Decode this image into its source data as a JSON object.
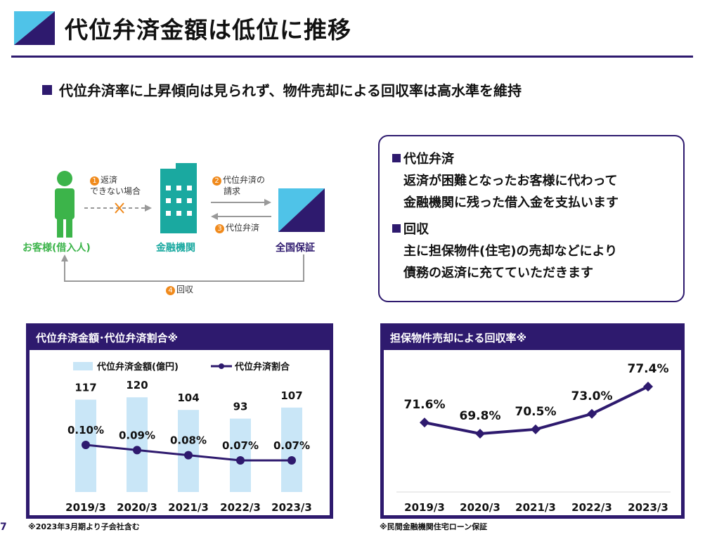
{
  "header": {
    "title": "代位弁済金額は低位に推移",
    "accent": "#2e1a6e",
    "logo_light": "#4fc3e8"
  },
  "subtitle": "代位弁済率に上昇傾向は見られず、物件売却による回収率は高水準を維持",
  "flow": {
    "customer": "お客様(借入人)",
    "bank": "金融機関",
    "guarantor": "全国保証",
    "step1_num": "1",
    "step1_line1": "返済",
    "step1_line2": "できない場合",
    "step2_num": "2",
    "step2_line1": "代位弁済の",
    "step2_line2": "請求",
    "step3_num": "3",
    "step3": "代位弁済",
    "step4_num": "4",
    "step4": "回収",
    "colors": {
      "customer": "#3cb44a",
      "bank": "#1aa9a0",
      "cross": "#f08a1c"
    }
  },
  "definitions": {
    "item1_title": "代位弁済",
    "item1_line1": "返済が困難となったお客様に代わって",
    "item1_line2": "金融機関に残った借入金を支払います",
    "item2_title": "回収",
    "item2_line1": "主に担保物件(住宅)の売却などにより",
    "item2_line2": "債務の返済に充てていただきます"
  },
  "chart_data": [
    {
      "type": "bar",
      "title": "代位弁済金額･代位弁済割合※",
      "categories": [
        "2019/3",
        "2020/3",
        "2021/3",
        "2022/3",
        "2023/3"
      ],
      "series": [
        {
          "name": "代位弁済金額(億円)",
          "type": "bar",
          "values": [
            117,
            120,
            104,
            93,
            107
          ],
          "labels": [
            "117",
            "120",
            "104",
            "93",
            "107"
          ]
        },
        {
          "name": "代位弁済割合",
          "type": "line",
          "values": [
            0.1,
            0.09,
            0.08,
            0.07,
            0.07
          ],
          "labels": [
            "0.10%",
            "0.09%",
            "0.08%",
            "0.07%",
            "0.07%"
          ]
        }
      ],
      "bar_color": "#c9e6f7",
      "line_color": "#2e1a6e",
      "footnote": "※2023年3月期より子会社含む"
    },
    {
      "type": "line",
      "title": "担保物件売却による回収率※",
      "categories": [
        "2019/3",
        "2020/3",
        "2021/3",
        "2022/3",
        "2023/3"
      ],
      "series": [
        {
          "name": "回収率",
          "values": [
            71.6,
            69.8,
            70.5,
            73.0,
            77.4
          ],
          "labels": [
            "71.6%",
            "69.8%",
            "70.5%",
            "73.0%",
            "77.4%"
          ]
        }
      ],
      "line_color": "#2e1a6e",
      "footnote": "※民間金融機関住宅ローン保証"
    }
  ],
  "footer": {
    "page": "7"
  }
}
